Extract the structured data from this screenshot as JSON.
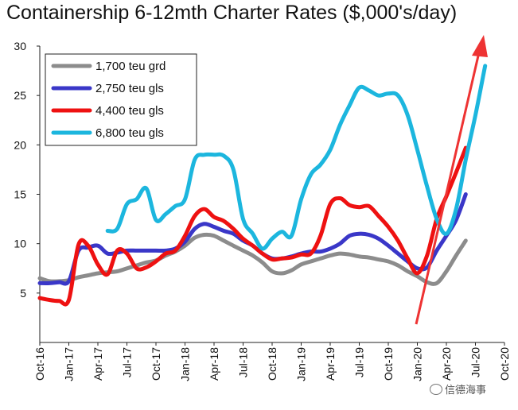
{
  "chart_data": {
    "type": "line",
    "title": "Containership 6-12mth Charter Rates ($,000's/day)",
    "xlabel": "",
    "ylabel": "",
    "ylim": [
      0,
      30
    ],
    "yticks": [
      5,
      10,
      15,
      20,
      25,
      30
    ],
    "grid": false,
    "legend_position": "top-left",
    "x_start": "Oct-16",
    "x_labels": [
      "Oct-16",
      "Jan-17",
      "Apr-17",
      "Jul-17",
      "Oct-17",
      "Jan-18",
      "Apr-18",
      "Jul-18",
      "Oct-18",
      "Jan-19",
      "Apr-19",
      "Jul-19",
      "Oct-19",
      "Jan-20",
      "Apr-20",
      "Jul-20",
      "Oct-20"
    ],
    "series": [
      {
        "name": "1,700 teu grd",
        "color": "#8c8c8c",
        "start_month": 0,
        "values": [
          6.5,
          6.2,
          6.2,
          6.3,
          6.6,
          6.8,
          7.0,
          7.1,
          7.2,
          7.5,
          7.8,
          8.1,
          8.3,
          8.8,
          9.2,
          9.8,
          10.6,
          10.9,
          10.8,
          10.3,
          9.8,
          9.3,
          8.8,
          8.1,
          7.2,
          7.0,
          7.3,
          7.9,
          8.2,
          8.5,
          8.8,
          9.0,
          8.9,
          8.7,
          8.6,
          8.4,
          8.2,
          7.8,
          7.2,
          6.7,
          6.1,
          6.0,
          7.2,
          8.8,
          10.3
        ]
      },
      {
        "name": "2,750 teu gls",
        "color": "#3a37c8",
        "start_month": 0,
        "values": [
          6.0,
          6.0,
          6.1,
          6.2,
          9.3,
          9.6,
          9.8,
          9.0,
          9.1,
          9.3,
          9.3,
          9.3,
          9.3,
          9.3,
          9.5,
          10.2,
          11.5,
          12.0,
          11.7,
          11.3,
          11.0,
          10.3,
          9.8,
          9.0,
          8.5,
          8.5,
          8.7,
          9.0,
          9.2,
          9.2,
          9.5,
          10.0,
          10.8,
          11.0,
          10.9,
          10.5,
          9.8,
          9.0,
          8.2,
          7.5,
          7.6,
          9.3,
          10.8,
          12.4,
          15.0
        ]
      },
      {
        "name": "4,400 teu gls",
        "color": "#ee1111",
        "start_month": 0,
        "values": [
          4.5,
          4.3,
          4.2,
          4.3,
          9.9,
          9.8,
          7.9,
          6.9,
          9.3,
          9.0,
          7.5,
          7.6,
          8.2,
          9.0,
          9.3,
          10.8,
          12.8,
          13.5,
          12.7,
          12.3,
          11.5,
          10.5,
          9.8,
          9.0,
          8.4,
          8.5,
          8.6,
          8.9,
          9.0,
          10.8,
          14.0,
          14.6,
          13.9,
          13.7,
          13.8,
          12.8,
          11.7,
          10.3,
          8.5,
          7.0,
          8.8,
          12.5,
          14.8,
          17.2,
          19.7
        ]
      },
      {
        "name": "6,800 teu gls",
        "color": "#1cb6de",
        "start_month": 7,
        "values": [
          11.3,
          11.5,
          14.0,
          14.5,
          15.6,
          12.4,
          13.0,
          13.8,
          14.5,
          18.5,
          19.0,
          19.0,
          18.9,
          17.5,
          12.5,
          11.0,
          9.5,
          10.5,
          11.2,
          10.8,
          14.5,
          17.0,
          18.0,
          19.5,
          22.0,
          24.0,
          25.8,
          25.5,
          25.0,
          25.2,
          25.0,
          23.0,
          19.5,
          15.8,
          12.5,
          11.0,
          13.5,
          18.5,
          23.0,
          28.0
        ]
      }
    ],
    "annotations": [
      {
        "type": "arrow",
        "color": "#ee3333",
        "description": "red upward trend arrow"
      }
    ]
  },
  "watermark_text": "信德海事"
}
